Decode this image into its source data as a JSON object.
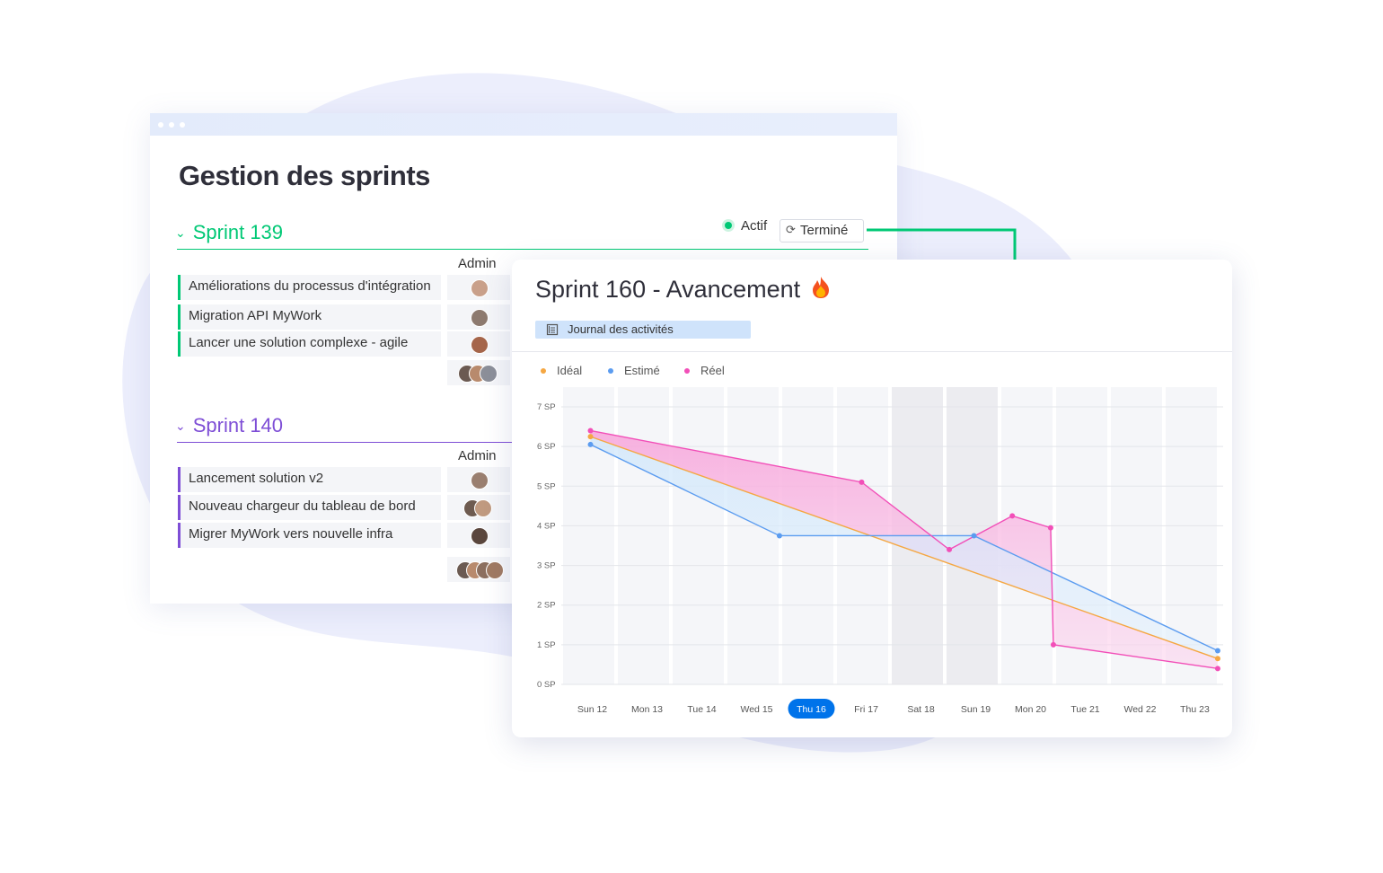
{
  "back_window": {
    "title": "Gestion des sprints",
    "status_active": "Actif",
    "status_done": "Terminé",
    "sprints": [
      {
        "name": "Sprint 139",
        "color": "#00c875",
        "admin_label": "Admin",
        "tasks": [
          {
            "label": "Améliorations du processus d'intégration"
          },
          {
            "label": " Migration API MyWork"
          },
          {
            "label": "Lancer une solution complexe - agile"
          }
        ]
      },
      {
        "name": "Sprint 140",
        "color": "#7e4ed6",
        "admin_label": "Admin",
        "tasks": [
          {
            "label": "Lancement solution v2"
          },
          {
            "label": "Nouveau chargeur du tableau de bord"
          },
          {
            "label": "Migrer MyWork vers nouvelle infra"
          }
        ]
      }
    ]
  },
  "card": {
    "title": "Sprint 160 - Avancement",
    "title_icon": "fire-icon",
    "journal_label": "Journal des activités"
  },
  "chart_data": {
    "type": "line",
    "x": [
      "Sun 12",
      "Mon 13",
      "Tue 14",
      "Wed 15",
      "Thu 16",
      "Fri 17",
      "Sat 18",
      "Sun 19",
      "Mon 20",
      "Tue 21",
      "Wed 22",
      "Thu 23"
    ],
    "x_highlight": "Thu 16",
    "y_ticks": [
      "0 SP",
      "1 SP",
      "2 SP",
      "3 SP",
      "4 SP",
      "5 SP",
      "6 SP",
      "7 SP"
    ],
    "ylim": [
      0,
      7
    ],
    "grid": true,
    "legend_position": "top-left",
    "series": [
      {
        "name": "Idéal",
        "color": "#f5a742",
        "points": [
          [
            0,
            6.25
          ],
          [
            11.45,
            0.65
          ]
        ]
      },
      {
        "name": "Estimé",
        "color": "#5b9cf0",
        "points": [
          [
            0,
            6.05
          ],
          [
            3.45,
            3.75
          ],
          [
            7.0,
            3.75
          ],
          [
            11.45,
            0.85
          ]
        ]
      },
      {
        "name": "Réel",
        "color": "#f24fb8",
        "points": [
          [
            0,
            6.4
          ],
          [
            4.95,
            5.1
          ],
          [
            6.55,
            3.4
          ],
          [
            7.7,
            4.25
          ],
          [
            8.4,
            3.95
          ],
          [
            8.45,
            1.0
          ],
          [
            11.45,
            0.4
          ]
        ]
      }
    ]
  }
}
